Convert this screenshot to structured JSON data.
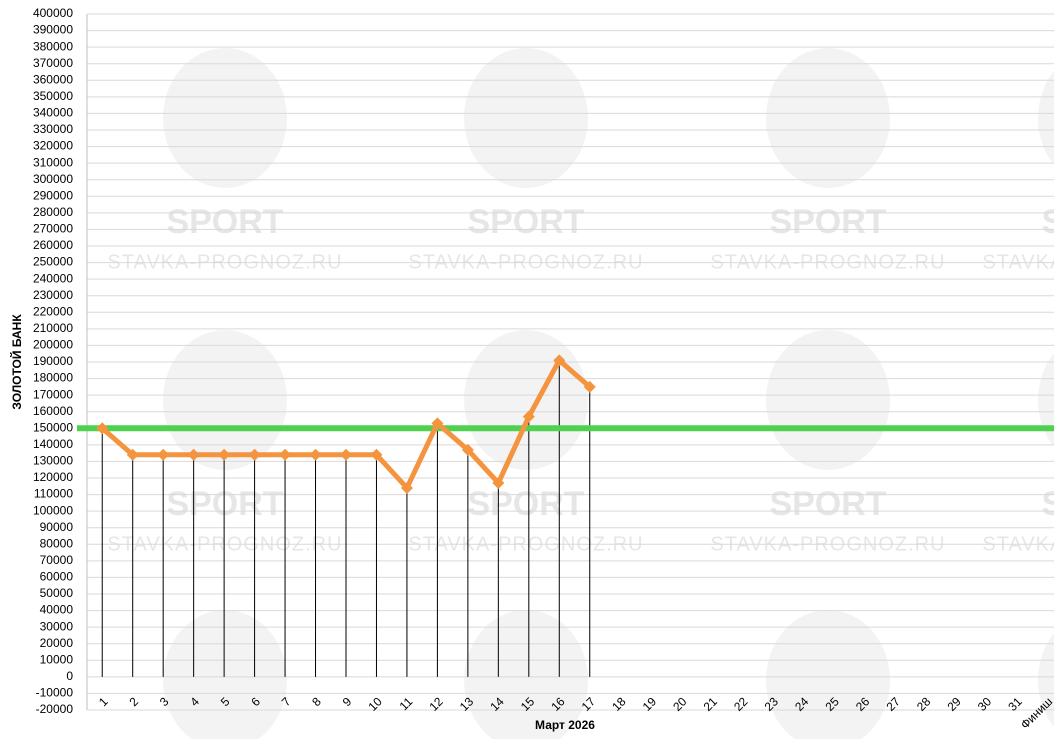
{
  "chart_data": {
    "type": "line",
    "y_label": "ЗОЛОТОЙ БАНК",
    "x_label": "Март 2026",
    "categories": [
      "1",
      "2",
      "3",
      "4",
      "5",
      "6",
      "7",
      "8",
      "9",
      "10",
      "11",
      "12",
      "13",
      "14",
      "15",
      "16",
      "17",
      "18",
      "19",
      "20",
      "21",
      "22",
      "23",
      "24",
      "25",
      "26",
      "27",
      "28",
      "29",
      "30",
      "31",
      "Финиш"
    ],
    "series": [
      {
        "name": "Банк",
        "color": "#f4943f",
        "values": [
          150000,
          134000,
          134000,
          134000,
          134000,
          134000,
          134000,
          134000,
          134000,
          134000,
          114000,
          153000,
          137000,
          117000,
          157000,
          191000,
          175000,
          null,
          null,
          null,
          null,
          null,
          null,
          null,
          null,
          null,
          null,
          null,
          null,
          null,
          null,
          null
        ]
      }
    ],
    "reference_line": {
      "value": 150000,
      "color": "#4fd14f"
    },
    "ylim": [
      -20000,
      400000
    ],
    "yticks": [
      -20000,
      -10000,
      0,
      10000,
      20000,
      30000,
      40000,
      50000,
      60000,
      70000,
      80000,
      90000,
      100000,
      110000,
      120000,
      130000,
      140000,
      150000,
      160000,
      170000,
      180000,
      190000,
      200000,
      210000,
      220000,
      230000,
      240000,
      250000,
      260000,
      270000,
      280000,
      290000,
      300000,
      310000,
      320000,
      330000,
      340000,
      350000,
      360000,
      370000,
      380000,
      390000,
      400000
    ],
    "grid": true,
    "watermark": {
      "logo": "SPORT",
      "site": "STAVKA-PROGNOZ.RU"
    }
  }
}
